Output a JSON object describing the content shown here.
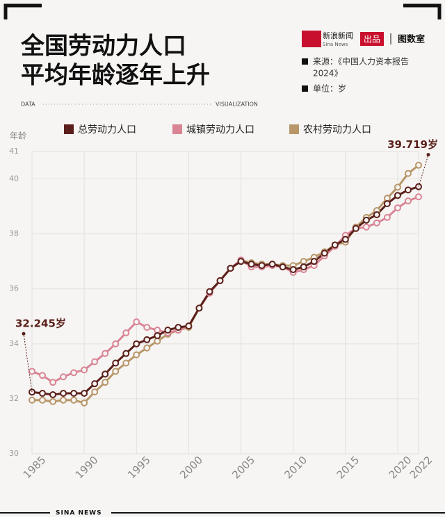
{
  "chart_data": {
    "type": "line",
    "title": [
      "全国劳动力人口",
      "平均年龄逐年上升"
    ],
    "brand": {
      "name": "新浪新闻",
      "name_en": "Sina News",
      "badge": "出品",
      "studio": "图数室"
    },
    "source": [
      "来源：《中国人力资本报告",
      "2024》"
    ],
    "unit": "单位：岁",
    "band_left": "DATA",
    "band_right": "VISUALIZATION",
    "footer": "SINA NEWS",
    "y_label": "年龄",
    "x": [
      1985,
      1986,
      1987,
      1988,
      1989,
      1990,
      1991,
      1992,
      1993,
      1994,
      1995,
      1996,
      1997,
      1998,
      1999,
      2000,
      2001,
      2002,
      2003,
      2004,
      2005,
      2006,
      2007,
      2008,
      2009,
      2010,
      2011,
      2012,
      2013,
      2014,
      2015,
      2016,
      2017,
      2018,
      2019,
      2020,
      2021,
      2022
    ],
    "xlim": [
      1985,
      2022
    ],
    "xticks": [
      1985,
      1990,
      1995,
      2000,
      2005,
      2010,
      2015,
      2020,
      2022
    ],
    "ylim": [
      30,
      41
    ],
    "yticks": [
      30,
      32,
      34,
      36,
      38,
      40,
      41
    ],
    "grid": true,
    "series": [
      {
        "name": "总劳动力人口",
        "color": "#5a1f1a",
        "values": [
          32.245,
          32.2,
          32.15,
          32.2,
          32.2,
          32.2,
          32.55,
          32.9,
          33.3,
          33.65,
          34.0,
          34.15,
          34.3,
          34.5,
          34.6,
          34.65,
          35.3,
          35.9,
          36.3,
          36.75,
          37.0,
          36.9,
          36.85,
          36.9,
          36.8,
          36.7,
          36.8,
          37.0,
          37.3,
          37.6,
          37.8,
          38.2,
          38.5,
          38.7,
          39.1,
          39.4,
          39.6,
          39.719
        ],
        "value_labels": [
          "32.245岁",
          null,
          null,
          null,
          null,
          null,
          null,
          null,
          null,
          null,
          null,
          null,
          null,
          null,
          null,
          null,
          null,
          null,
          null,
          null,
          null,
          null,
          null,
          null,
          null,
          null,
          null,
          null,
          null,
          null,
          null,
          null,
          null,
          null,
          null,
          null,
          null,
          "39.719岁"
        ]
      },
      {
        "name": "城镇劳动力人口",
        "color": "#d98595",
        "values": [
          33.0,
          32.85,
          32.6,
          32.8,
          32.95,
          33.05,
          33.35,
          33.65,
          34.0,
          34.4,
          34.8,
          34.6,
          34.5,
          34.4,
          34.5,
          34.65,
          35.3,
          35.85,
          36.3,
          36.75,
          37.05,
          36.8,
          36.8,
          36.85,
          36.8,
          36.6,
          36.7,
          36.85,
          37.2,
          37.55,
          37.95,
          38.2,
          38.25,
          38.4,
          38.6,
          38.95,
          39.2,
          39.35
        ]
      },
      {
        "name": "农村劳动力人口",
        "color": "#b8976a",
        "values": [
          31.95,
          31.95,
          31.9,
          31.95,
          31.95,
          31.85,
          32.25,
          32.6,
          33.0,
          33.3,
          33.6,
          33.85,
          34.1,
          34.35,
          34.5,
          34.6,
          35.3,
          35.85,
          36.3,
          36.75,
          37.05,
          36.95,
          36.9,
          36.9,
          36.85,
          36.85,
          37.0,
          37.15,
          37.35,
          37.6,
          37.7,
          38.25,
          38.6,
          38.85,
          39.3,
          39.7,
          40.2,
          40.5
        ]
      }
    ]
  }
}
